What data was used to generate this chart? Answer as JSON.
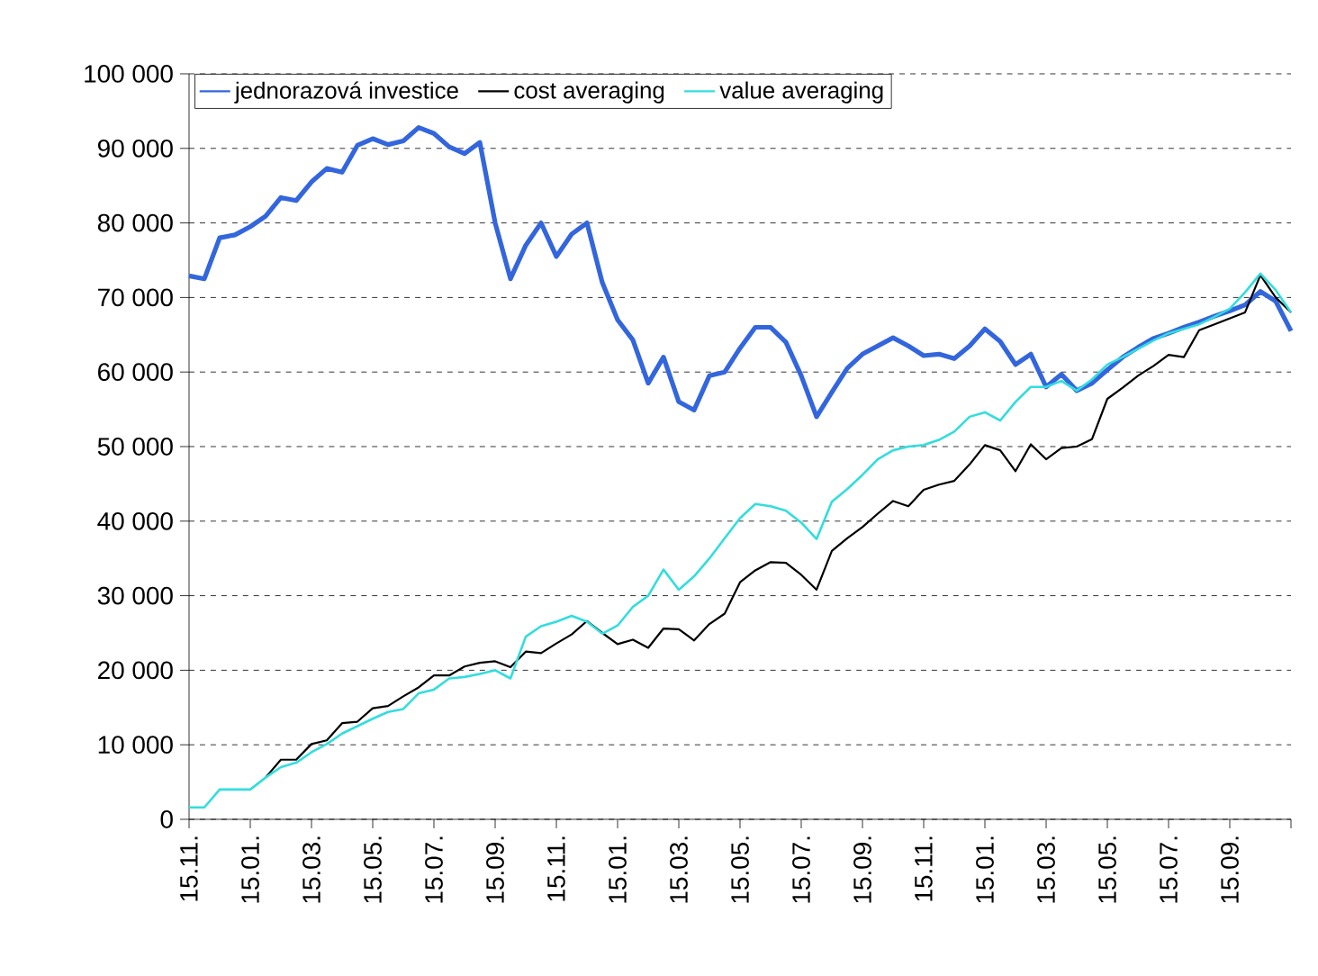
{
  "chart_data": {
    "type": "line",
    "categories": [
      "15.11.",
      null,
      null,
      null,
      "15.01.",
      null,
      null,
      null,
      "15.03.",
      null,
      null,
      null,
      "15.05.",
      null,
      null,
      null,
      "15.07.",
      null,
      null,
      null,
      "15.09.",
      null,
      null,
      null,
      "15.11.",
      null,
      null,
      null,
      "15.01.",
      null,
      null,
      null,
      "15.03.",
      null,
      null,
      null,
      "15.05.",
      null,
      null,
      null,
      "15.07.",
      null,
      null,
      null,
      "15.09.",
      null,
      null,
      null,
      "15.11.",
      null,
      null,
      null,
      "15.01.",
      null,
      null,
      null,
      "15.03.",
      null,
      null,
      null,
      "15.05.",
      null,
      null,
      null,
      "15.07.",
      null,
      null,
      null,
      "15.09.",
      null,
      null,
      null,
      null
    ],
    "ylim": [
      0,
      100000
    ],
    "yticks": [
      {
        "value": 0,
        "label": "0"
      },
      {
        "value": 10000,
        "label": "10 000"
      },
      {
        "value": 20000,
        "label": "20 000"
      },
      {
        "value": 30000,
        "label": "30 000"
      },
      {
        "value": 40000,
        "label": "40 000"
      },
      {
        "value": 50000,
        "label": "50 000"
      },
      {
        "value": 60000,
        "label": "60 000"
      },
      {
        "value": 70000,
        "label": "70 000"
      },
      {
        "value": 80000,
        "label": "80 000"
      },
      {
        "value": 90000,
        "label": "90 000"
      },
      {
        "value": 100000,
        "label": "100 000"
      }
    ],
    "grid": "y",
    "legend": "top",
    "marker": "none",
    "line_style": "solid",
    "series": [
      {
        "name": "jednorazová investice",
        "color": "#3366dd",
        "values": [
          72900,
          72500,
          78000,
          78400,
          79500,
          80900,
          83400,
          83000,
          85500,
          87300,
          86800,
          90400,
          91300,
          90500,
          91000,
          92800,
          92000,
          90200,
          89300,
          90800,
          80000,
          72500,
          77000,
          80000,
          75500,
          78500,
          80000,
          72000,
          67000,
          64300,
          58500,
          62000,
          56000,
          54900,
          59500,
          60000,
          63200,
          66000,
          66000,
          64000,
          59500,
          54000,
          57300,
          60500,
          62400,
          63500,
          64600,
          63500,
          62200,
          62400,
          61800,
          63500,
          65800,
          64100,
          61000,
          62400,
          58000,
          59700,
          57500,
          58500,
          60300,
          62000,
          63300,
          64500,
          65200,
          66000,
          66700,
          67500,
          68200,
          69000,
          70800,
          69500,
          65500
        ]
      },
      {
        "name": "cost averaging",
        "color": "#000000",
        "values": [
          null,
          null,
          null,
          null,
          null,
          5600,
          8000,
          8000,
          10100,
          10600,
          12900,
          13100,
          14900,
          15200,
          16500,
          17700,
          19300,
          19300,
          20500,
          21000,
          21200,
          20400,
          22500,
          22300,
          23600,
          24800,
          26600,
          25000,
          23500,
          24100,
          23000,
          25600,
          25500,
          24000,
          26200,
          27600,
          31800,
          33400,
          34500,
          34400,
          32800,
          30800,
          36000,
          37700,
          39200,
          41000,
          42700,
          42000,
          44200,
          44900,
          45400,
          47600,
          50200,
          49500,
          46700,
          50300,
          48300,
          49800,
          50000,
          51000,
          56400,
          57900,
          59500,
          60800,
          62300,
          62000,
          65600,
          66400,
          67200,
          68000,
          73000,
          70000,
          68000
        ]
      },
      {
        "name": "value averaging",
        "color": "#33dddd",
        "values": [
          1600,
          1600,
          4000,
          4000,
          4000,
          5600,
          7000,
          7600,
          9000,
          10100,
          11500,
          12500,
          13500,
          14400,
          14800,
          16900,
          17400,
          18900,
          19100,
          19500,
          20000,
          18900,
          24500,
          25900,
          26500,
          27300,
          26500,
          24900,
          26000,
          28500,
          30000,
          33500,
          30800,
          32600,
          35000,
          37700,
          40400,
          42300,
          42000,
          41400,
          39800,
          37600,
          42600,
          44300,
          46200,
          48300,
          49500,
          50000,
          50200,
          50900,
          52000,
          54000,
          54600,
          53500,
          56000,
          58000,
          58000,
          58800,
          57500,
          59000,
          61000,
          62000,
          63100,
          64200,
          65200,
          65800,
          66400,
          67400,
          68500,
          70700,
          73200,
          71000,
          68000
        ]
      }
    ]
  }
}
